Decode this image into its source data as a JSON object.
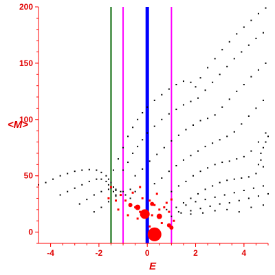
{
  "chart_data": {
    "type": "scatter",
    "xlabel": "E",
    "ylabel": "<M>",
    "xlim": [
      -4.5,
      5.0
    ],
    "ylim": [
      -10,
      200
    ],
    "grid": false,
    "x_ticks": [
      {
        "value": -4,
        "label": "-4"
      },
      {
        "value": -2,
        "label": "-2"
      },
      {
        "value": 0,
        "label": "0"
      },
      {
        "value": 2,
        "label": "2"
      },
      {
        "value": 4,
        "label": "4"
      }
    ],
    "y_ticks": [
      {
        "value": 0,
        "label": "0"
      },
      {
        "value": 50,
        "label": "50"
      },
      {
        "value": 100,
        "label": "100"
      },
      {
        "value": 150,
        "label": "150"
      },
      {
        "value": 200,
        "label": "200"
      }
    ],
    "colors": {
      "axis": "#ff0000",
      "dots": "#000000",
      "cluster": "#ff0000",
      "green_line": "#006400",
      "blue_line": "#0000ff",
      "magenta_line": "#ff00ff"
    },
    "vertical_lines": [
      {
        "x": -1.5,
        "color": "#006400",
        "width": 2
      },
      {
        "x": -1.0,
        "color": "#ff00ff",
        "width": 2
      },
      {
        "x": 0.0,
        "color": "#0000ff",
        "width": 5
      },
      {
        "x": 1.0,
        "color": "#ff00ff",
        "width": 2
      }
    ],
    "series": [
      {
        "color": "#000000",
        "points": [
          [
            -4.5,
            42
          ],
          [
            -4.2,
            44
          ],
          [
            -3.9,
            47
          ],
          [
            -3.6,
            50
          ],
          [
            -3.3,
            52
          ],
          [
            -3.0,
            54
          ],
          [
            -2.7,
            55
          ],
          [
            -2.4,
            55.5
          ],
          [
            -2.1,
            55
          ],
          [
            -1.9,
            53
          ],
          [
            -1.7,
            50
          ],
          [
            -1.6,
            47
          ],
          [
            -1.5,
            44
          ],
          [
            -1.4,
            40
          ],
          [
            -1.3,
            37
          ]
        ]
      },
      {
        "color": "#000000",
        "points": [
          [
            -3.6,
            33
          ],
          [
            -3.3,
            36
          ],
          [
            -3.0,
            39
          ],
          [
            -2.7,
            42
          ],
          [
            -2.4,
            45
          ],
          [
            -2.1,
            47
          ],
          [
            -1.9,
            47
          ],
          [
            -1.7,
            45
          ],
          [
            -1.6,
            42
          ],
          [
            -1.5,
            39
          ],
          [
            -1.4,
            36
          ],
          [
            -1.3,
            33
          ]
        ]
      },
      {
        "color": "#000000",
        "points": [
          [
            -2.8,
            25
          ],
          [
            -2.5,
            29
          ],
          [
            -2.2,
            33
          ],
          [
            -1.9,
            36
          ],
          [
            -1.6,
            38
          ],
          [
            -1.3,
            38
          ],
          [
            -1.1,
            36
          ],
          [
            -0.9,
            33
          ],
          [
            -0.7,
            30
          ]
        ]
      },
      {
        "color": "#000000",
        "points": [
          [
            -2.2,
            18
          ],
          [
            -1.9,
            22
          ],
          [
            -1.6,
            27
          ],
          [
            -1.3,
            32
          ],
          [
            -1.0,
            36
          ],
          [
            -0.7,
            38
          ],
          [
            -0.5,
            36
          ]
        ]
      },
      {
        "color": "#000000",
        "points": [
          [
            -1.4,
            55
          ],
          [
            -1.2,
            65
          ],
          [
            -1.0,
            75
          ],
          [
            -0.8,
            85
          ],
          [
            -0.6,
            93
          ],
          [
            -0.4,
            100
          ],
          [
            -0.2,
            106
          ],
          [
            0.0,
            111
          ],
          [
            0.3,
            117
          ],
          [
            0.6,
            122
          ],
          [
            0.9,
            127
          ],
          [
            1.2,
            131
          ],
          [
            1.5,
            134
          ],
          [
            1.8,
            133
          ],
          [
            2.0,
            129
          ],
          [
            2.2,
            137
          ],
          [
            2.5,
            146
          ],
          [
            2.8,
            154
          ],
          [
            3.1,
            162
          ],
          [
            3.4,
            169
          ],
          [
            3.7,
            176
          ],
          [
            4.0,
            182
          ],
          [
            4.3,
            188
          ],
          [
            4.6,
            194
          ],
          [
            4.9,
            199
          ]
        ]
      },
      {
        "color": "#000000",
        "points": [
          [
            -1.0,
            55
          ],
          [
            -0.8,
            62
          ],
          [
            -0.6,
            70
          ],
          [
            -0.4,
            76
          ],
          [
            -0.2,
            82
          ],
          [
            0.0,
            88
          ],
          [
            0.3,
            94
          ],
          [
            0.6,
            100
          ],
          [
            0.9,
            105
          ],
          [
            1.2,
            109
          ],
          [
            1.5,
            113
          ],
          [
            1.8,
            116
          ],
          [
            2.1,
            119
          ],
          [
            2.4,
            126
          ],
          [
            2.7,
            133
          ],
          [
            3.0,
            140
          ],
          [
            3.3,
            147
          ],
          [
            3.6,
            154
          ],
          [
            3.9,
            160
          ],
          [
            4.2,
            166
          ],
          [
            4.5,
            172
          ],
          [
            4.8,
            177
          ]
        ]
      },
      {
        "color": "#000000",
        "points": [
          [
            -0.5,
            50
          ],
          [
            -0.2,
            56
          ],
          [
            0.1,
            63
          ],
          [
            0.4,
            69
          ],
          [
            0.7,
            75
          ],
          [
            1.0,
            81
          ],
          [
            1.3,
            86
          ],
          [
            1.6,
            91
          ],
          [
            1.9,
            95
          ],
          [
            2.2,
            99
          ],
          [
            2.5,
            101
          ],
          [
            2.8,
            104
          ],
          [
            3.1,
            111
          ],
          [
            3.4,
            118
          ],
          [
            3.7,
            125
          ],
          [
            4.0,
            131
          ],
          [
            4.3,
            138
          ],
          [
            4.6,
            144
          ],
          [
            4.9,
            150
          ]
        ]
      },
      {
        "color": "#000000",
        "points": [
          [
            0.3,
            43
          ],
          [
            0.6,
            48
          ],
          [
            0.9,
            54
          ],
          [
            1.2,
            59
          ],
          [
            1.5,
            64
          ],
          [
            1.8,
            68
          ],
          [
            2.1,
            72
          ],
          [
            2.4,
            76
          ],
          [
            2.7,
            79
          ],
          [
            3.0,
            82
          ],
          [
            3.3,
            85
          ],
          [
            3.6,
            89
          ],
          [
            3.9,
            96
          ],
          [
            4.2,
            103
          ],
          [
            4.5,
            110
          ],
          [
            4.8,
            117
          ]
        ]
      },
      {
        "color": "#000000",
        "points": [
          [
            1.0,
            36
          ],
          [
            1.3,
            41
          ],
          [
            1.6,
            45
          ],
          [
            1.9,
            50
          ],
          [
            2.2,
            54
          ],
          [
            2.5,
            57
          ],
          [
            2.8,
            60
          ],
          [
            3.1,
            62
          ],
          [
            3.4,
            63
          ],
          [
            3.7,
            65
          ],
          [
            4.0,
            67
          ],
          [
            4.3,
            72
          ],
          [
            4.6,
            80
          ],
          [
            4.9,
            88
          ]
        ]
      },
      {
        "color": "#000000",
        "points": [
          [
            1.5,
            26
          ],
          [
            1.8,
            30
          ],
          [
            2.1,
            34
          ],
          [
            2.4,
            38
          ],
          [
            2.7,
            41
          ],
          [
            3.0,
            44
          ],
          [
            3.3,
            46
          ],
          [
            3.6,
            47
          ],
          [
            3.9,
            48
          ],
          [
            4.2,
            49
          ],
          [
            4.5,
            52
          ],
          [
            4.8,
            58
          ]
        ]
      },
      {
        "color": "#000000",
        "points": [
          [
            1.2,
            22
          ],
          [
            1.6,
            24
          ],
          [
            2.0,
            27
          ],
          [
            2.4,
            29
          ],
          [
            2.8,
            31
          ],
          [
            3.2,
            33
          ],
          [
            3.6,
            35
          ],
          [
            4.0,
            37
          ],
          [
            4.4,
            39
          ],
          [
            4.8,
            41
          ]
        ]
      },
      {
        "color": "#000000",
        "points": [
          [
            1.0,
            14
          ],
          [
            1.4,
            17
          ],
          [
            1.8,
            19
          ],
          [
            2.2,
            21
          ],
          [
            2.6,
            23
          ],
          [
            3.0,
            25
          ],
          [
            3.4,
            26
          ],
          [
            3.8,
            28
          ],
          [
            4.2,
            30
          ],
          [
            4.6,
            32
          ],
          [
            5.0,
            34
          ]
        ]
      },
      {
        "color": "#000000",
        "points": [
          [
            0.8,
            20
          ],
          [
            1.3,
            18
          ],
          [
            1.8,
            16
          ],
          [
            2.3,
            17
          ],
          [
            2.8,
            19
          ],
          [
            3.3,
            20
          ],
          [
            3.8,
            18
          ],
          [
            4.3,
            22
          ],
          [
            4.8,
            24
          ]
        ]
      },
      {
        "color": "#000000",
        "points": [
          [
            4.7,
            70
          ],
          [
            4.8,
            75
          ],
          [
            4.9,
            80
          ],
          [
            5.0,
            85
          ],
          [
            4.6,
            60
          ],
          [
            4.7,
            64
          ]
        ]
      },
      {
        "color": "#ff0000",
        "points": [
          [
            0.3,
            -2
          ],
          [
            0.25,
            0
          ],
          [
            0.35,
            2
          ],
          [
            0.1,
            5
          ],
          [
            -0.3,
            18
          ],
          [
            -0.1,
            16
          ],
          [
            0.2,
            15
          ],
          [
            -0.5,
            22
          ],
          [
            -0.7,
            25
          ],
          [
            -0.9,
            28
          ],
          [
            -0.4,
            12
          ],
          [
            0.5,
            20
          ],
          [
            0.7,
            22
          ],
          [
            0.9,
            18
          ],
          [
            1.1,
            10
          ],
          [
            -0.2,
            30
          ],
          [
            0.1,
            28
          ],
          [
            -0.6,
            35
          ],
          [
            -0.3,
            40
          ],
          [
            0.4,
            34
          ],
          [
            -1.5,
            40
          ],
          [
            -1.6,
            30
          ],
          [
            -1.3,
            28
          ],
          [
            -1.1,
            33
          ],
          [
            0.8,
            26
          ],
          [
            1.0,
            29
          ],
          [
            -0.8,
            15
          ],
          [
            0.6,
            8
          ],
          [
            -1.2,
            20
          ],
          [
            0.3,
            24
          ]
        ]
      }
    ],
    "big_points": [
      [
        0.3,
        -2,
        10
      ],
      [
        -0.1,
        16,
        7
      ],
      [
        -0.4,
        22,
        4
      ],
      [
        0.5,
        14,
        4
      ],
      [
        -0.7,
        24,
        3
      ],
      [
        0.9,
        6,
        3
      ],
      [
        1.0,
        4,
        3
      ],
      [
        0.2,
        25,
        3
      ]
    ]
  }
}
